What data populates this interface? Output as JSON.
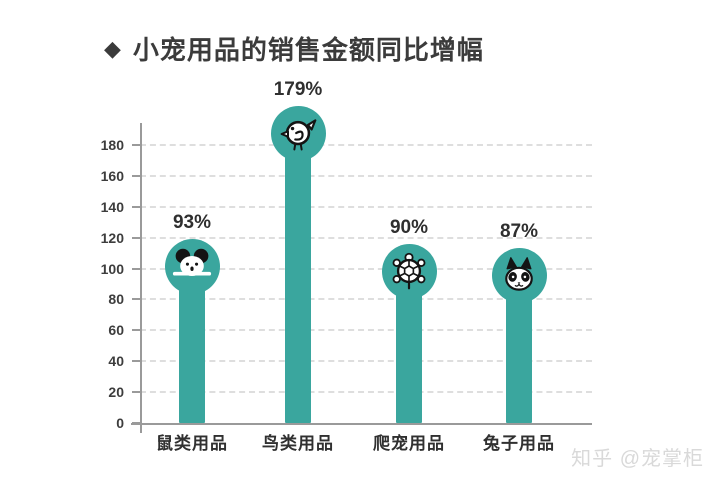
{
  "title": {
    "bullet": "◆",
    "text": "小宠用品的销售金额同比增幅"
  },
  "watermark": {
    "text": "知乎 @宠掌柜"
  },
  "chart_data": {
    "type": "bar",
    "title": "小宠用品的销售金额同比增幅",
    "categories": [
      "鼠类用品",
      "鸟类用品",
      "爬宠用品",
      "兔子用品"
    ],
    "values": [
      93,
      179,
      90,
      87
    ],
    "data_labels": [
      "93%",
      "179%",
      "90%",
      "87%"
    ],
    "icons": [
      "mouse-icon",
      "bird-icon",
      "turtle-icon",
      "rabbit-icon"
    ],
    "xlabel": "",
    "ylabel": "",
    "ylim": [
      0,
      180
    ],
    "yticks": [
      0,
      20,
      40,
      60,
      80,
      100,
      120,
      140,
      160,
      180
    ],
    "grid": "horizontal-dashed",
    "legend": "none",
    "bar_color": "#3AA69E",
    "text_color": "#2F2F2F"
  }
}
